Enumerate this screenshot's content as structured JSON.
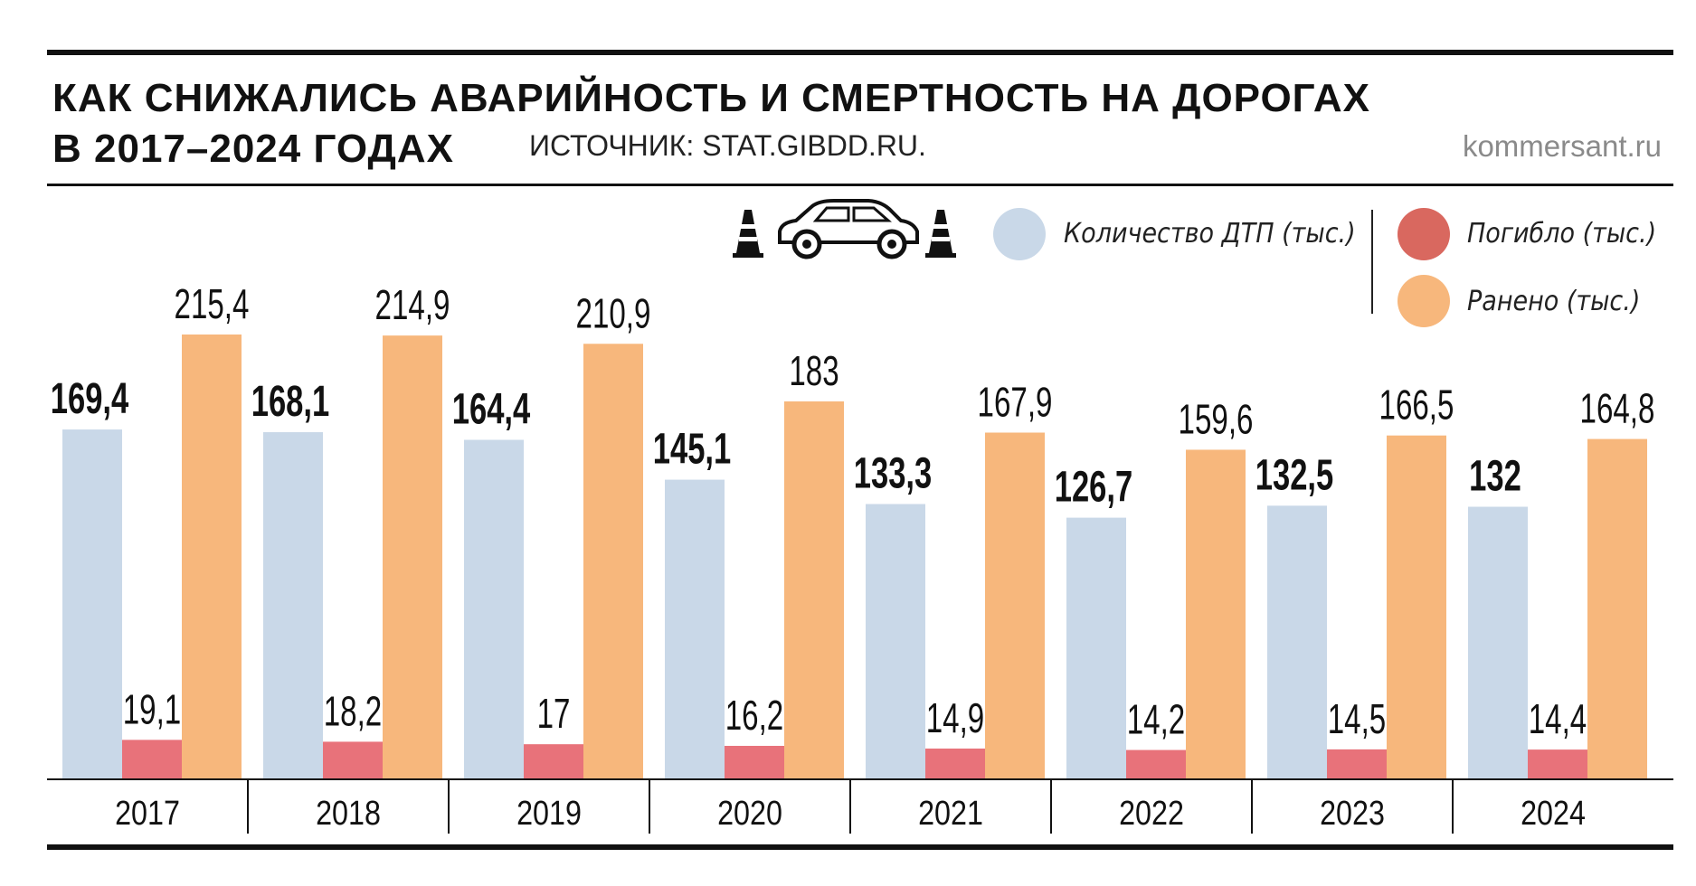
{
  "header": {
    "title_line1": "КАК СНИЖАЛИСЬ АВАРИЙНОСТЬ И СМЕРТНОСТЬ НА ДОРОГАХ",
    "title_line2": "В 2017–2024 ГОДАХ",
    "source": "ИСТОЧНИК: STAT.GIBDD.RU.",
    "brand": "kommersant.ru"
  },
  "legend": {
    "icon": "car-with-traffic-cones-icon",
    "items": [
      {
        "label": "Количество ДТП (тыс.)",
        "color": "#c9d8e8"
      },
      {
        "label": "Погибло (тыс.)",
        "color": "#d9685f"
      },
      {
        "label": "Ранено (тыс.)",
        "color": "#f7b77c"
      }
    ]
  },
  "chart_data": {
    "type": "bar",
    "title": "КАК СНИЖАЛИСЬ АВАРИЙНОСТЬ И СМЕРТНОСТЬ НА ДОРОГАХ В 2017–2024 ГОДАХ",
    "categories": [
      "2017",
      "2018",
      "2019",
      "2020",
      "2021",
      "2022",
      "2023",
      "2024"
    ],
    "series": [
      {
        "name": "Количество ДТП (тыс.)",
        "color": "#c9d8e8",
        "values": [
          169.4,
          168.1,
          164.4,
          145.1,
          133.3,
          126.7,
          132.5,
          132
        ],
        "labels": [
          "169,4",
          "168,1",
          "164,4",
          "145,1",
          "133,3",
          "126,7",
          "132,5",
          "132"
        ]
      },
      {
        "name": "Погибло (тыс.)",
        "color": "#e8727a",
        "values": [
          19.1,
          18.2,
          17,
          16.2,
          14.9,
          14.2,
          14.5,
          14.4
        ],
        "labels": [
          "19,1",
          "18,2",
          "17",
          "16,2",
          "14,9",
          "14,2",
          "14,5",
          "14,4"
        ]
      },
      {
        "name": "Ранено (тыс.)",
        "color": "#f7b77c",
        "values": [
          215.4,
          214.9,
          210.9,
          183,
          167.9,
          159.6,
          166.5,
          164.8
        ],
        "labels": [
          "215,4",
          "214,9",
          "210,9",
          "183",
          "167,9",
          "159,6",
          "166,5",
          "164,8"
        ]
      }
    ],
    "ylim": [
      0,
      215.4
    ],
    "grid": false,
    "legend_position": "top-right"
  }
}
